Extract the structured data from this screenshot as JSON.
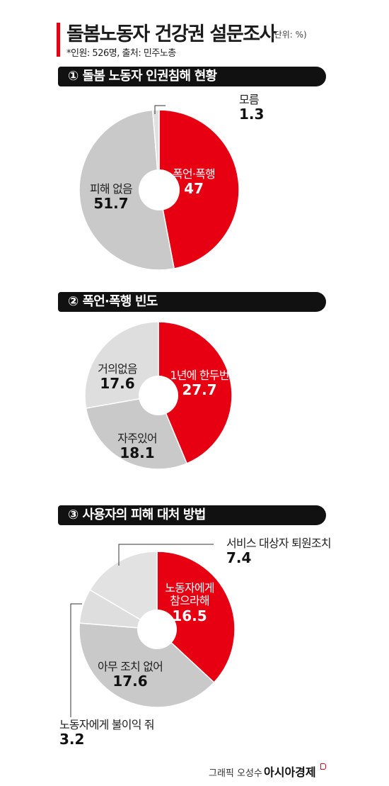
{
  "header": {
    "title": "돌봄노동자 건강권 설문조사",
    "unit": "(단위: %)",
    "subtitle": "*인원: 526명, 출처: 민주노총"
  },
  "colors": {
    "accent": "#e60012",
    "gray_dark": "#c9c9c9",
    "gray_light": "#dedede",
    "bar": "#111111"
  },
  "chart_data": [
    {
      "type": "pie",
      "number": "①",
      "title": "돌봄 노동자 인권침해 현황",
      "slices": [
        {
          "label": "폭언·폭행",
          "value": 47,
          "display": "47",
          "color": "#e60012"
        },
        {
          "label": "피해 없음",
          "value": 51.7,
          "display": "51.7",
          "color": "#c9c9c9"
        },
        {
          "label": "모름",
          "value": 1.3,
          "display": "1.3",
          "color": "#e0e0e0"
        }
      ]
    },
    {
      "type": "pie",
      "number": "②",
      "title": "폭언·폭행 빈도",
      "slices": [
        {
          "label": "1년에 한두번",
          "value": 27.7,
          "display": "27.7",
          "color": "#e60012"
        },
        {
          "label": "자주있어",
          "value": 18.1,
          "display": "18.1",
          "color": "#c9c9c9"
        },
        {
          "label": "거의없음",
          "value": 17.6,
          "display": "17.6",
          "color": "#dedede"
        }
      ]
    },
    {
      "type": "pie",
      "number": "③",
      "title": "사용자의 피해 대처 방법",
      "slices": [
        {
          "label": "노동자에게 참으라해",
          "value": 16.5,
          "display": "16.5",
          "color": "#e60012"
        },
        {
          "label": "아무 조치 없어",
          "value": 17.6,
          "display": "17.6",
          "color": "#c9c9c9"
        },
        {
          "label": "노동자에게 불이익 줘",
          "value": 3.2,
          "display": "3.2",
          "color": "#dedede"
        },
        {
          "label": "서비스 대상자 퇴원조치",
          "value": 7.4,
          "display": "7.4",
          "color": "#e2e2e2"
        }
      ]
    }
  ],
  "labels": {
    "c1": {
      "s0_name": "폭언·폭행",
      "s1_name": "피해 없음",
      "s2_name": "모름"
    },
    "c2": {
      "s0_name": "1년에 한두번",
      "s1_name": "자주있어",
      "s2_name": "거의없음"
    },
    "c3": {
      "s0_line1": "노동자에게",
      "s0_line2": "참으라해",
      "s1_name": "아무 조치 없어",
      "s2_name": "노동자에게 불이익 줘",
      "s3_name": "서비스 대상자 퇴원조치"
    }
  },
  "footer": {
    "credit": "그래픽 오성수",
    "brand": "아시아경제"
  }
}
